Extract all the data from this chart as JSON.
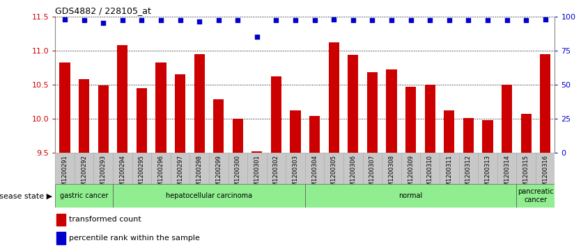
{
  "title": "GDS4882 / 228105_at",
  "categories": [
    "GSM1200291",
    "GSM1200292",
    "GSM1200293",
    "GSM1200294",
    "GSM1200295",
    "GSM1200296",
    "GSM1200297",
    "GSM1200298",
    "GSM1200299",
    "GSM1200300",
    "GSM1200301",
    "GSM1200302",
    "GSM1200303",
    "GSM1200304",
    "GSM1200305",
    "GSM1200306",
    "GSM1200307",
    "GSM1200308",
    "GSM1200309",
    "GSM1200310",
    "GSM1200311",
    "GSM1200312",
    "GSM1200313",
    "GSM1200314",
    "GSM1200315",
    "GSM1200316"
  ],
  "bar_values": [
    10.82,
    10.58,
    10.49,
    11.08,
    10.45,
    10.82,
    10.65,
    10.95,
    10.28,
    10.0,
    9.52,
    10.62,
    10.12,
    10.04,
    11.12,
    10.93,
    10.68,
    10.72,
    10.47,
    10.5,
    10.12,
    10.01,
    9.98,
    10.5,
    10.07,
    10.95
  ],
  "percentile_values": [
    98,
    97,
    95,
    97,
    97,
    97,
    97,
    96,
    97,
    97,
    85,
    97,
    97,
    97,
    98,
    97,
    97,
    97,
    97,
    97,
    97,
    97,
    97,
    97,
    97,
    98
  ],
  "bar_color": "#cc0000",
  "dot_color": "#0000cc",
  "ylim_left": [
    9.5,
    11.5
  ],
  "ylim_right": [
    0,
    100
  ],
  "yticks_left": [
    9.5,
    10.0,
    10.5,
    11.0,
    11.5
  ],
  "yticks_right": [
    0,
    25,
    50,
    75,
    100
  ],
  "disease_groups": [
    {
      "label": "gastric cancer",
      "start": 0,
      "end": 3
    },
    {
      "label": "hepatocellular carcinoma",
      "start": 3,
      "end": 13
    },
    {
      "label": "normal",
      "start": 13,
      "end": 24
    },
    {
      "label": "pancreatic\ncancer",
      "start": 24,
      "end": 26
    }
  ],
  "disease_state_label": "disease state",
  "legend_items": [
    {
      "color": "#cc0000",
      "label": "transformed count"
    },
    {
      "color": "#0000cc",
      "label": "percentile rank within the sample"
    }
  ],
  "background_color": "#ffffff",
  "bar_width": 0.55,
  "tick_bg_color": "#c8c8c8",
  "green_color": "#90ee90",
  "grid_color": "#000000"
}
